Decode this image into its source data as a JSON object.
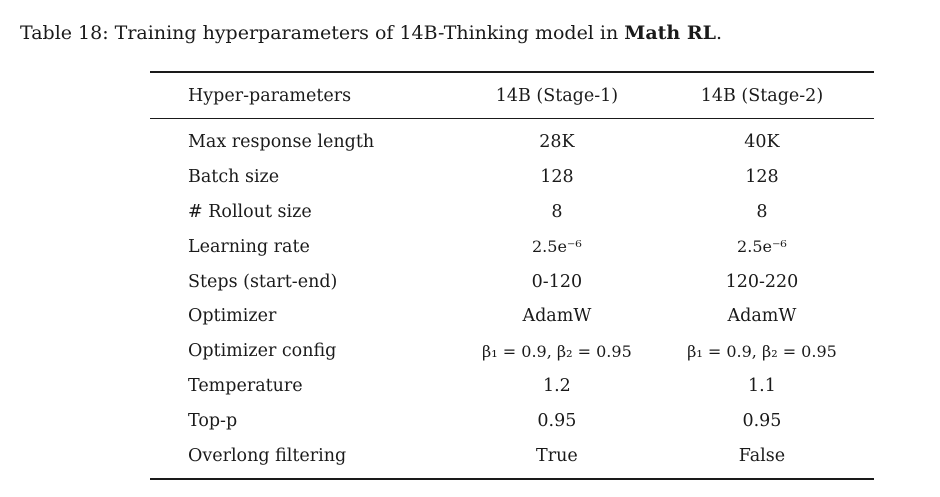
{
  "caption": {
    "prefix": "Table 18: Training hyperparameters of 14B-Thinking model in ",
    "bold": "Math RL",
    "suffix": "."
  },
  "table": {
    "headers": [
      "Hyper-parameters",
      "14B (Stage-1)",
      "14B (Stage-2)"
    ],
    "rows": [
      [
        "Max response length",
        "28K",
        "40K"
      ],
      [
        "Batch size",
        "128",
        "128"
      ],
      [
        "# Rollout size",
        "8",
        "8"
      ],
      [
        "Learning rate",
        "2.5e⁻⁶",
        "2.5e⁻⁶"
      ],
      [
        "Steps (start-end)",
        "0-120",
        "120-220"
      ],
      [
        "Optimizer",
        "AdamW",
        "AdamW"
      ],
      [
        "Optimizer config",
        "β₁ = 0.9, β₂ = 0.95",
        "β₁ = 0.9, β₂ = 0.95"
      ],
      [
        "Temperature",
        "1.2",
        "1.1"
      ],
      [
        "Top-p",
        "0.95",
        "0.95"
      ],
      [
        "Overlong filtering",
        "True",
        "False"
      ]
    ]
  }
}
